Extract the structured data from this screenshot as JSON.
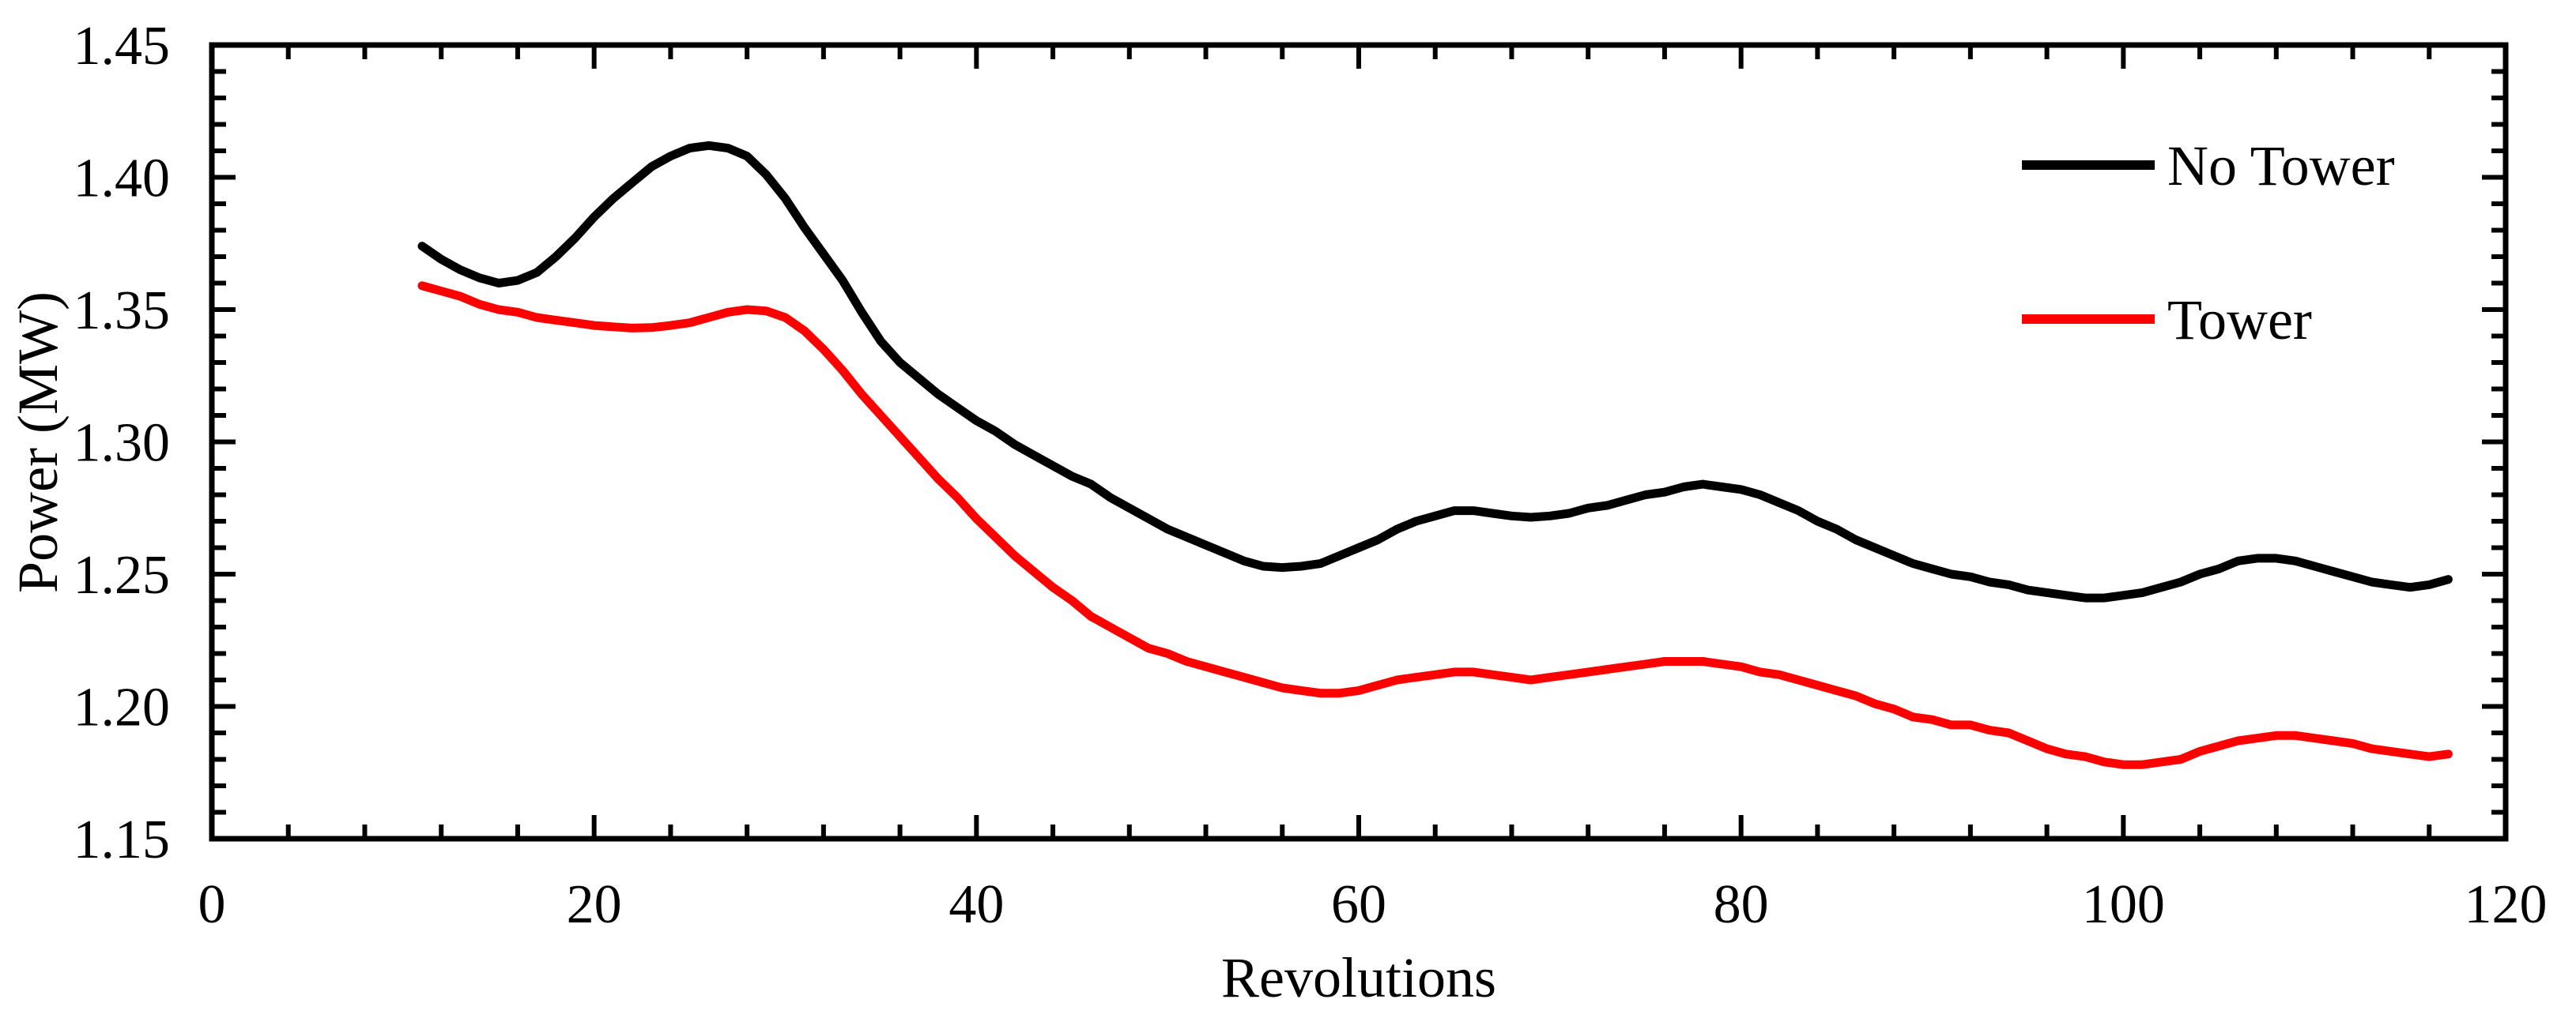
{
  "colors": {
    "background": "#ffffff",
    "axis": "#000000",
    "series_no_tower": "#000000",
    "series_tower": "#ff0000"
  },
  "chart_data": {
    "type": "line",
    "title": "",
    "xlabel": "Revolutions",
    "ylabel": "Power (MW)",
    "xlim": [
      0,
      120
    ],
    "ylim": [
      1.15,
      1.45
    ],
    "grid": false,
    "legend_position": "top-right",
    "x_major_tick_step": 20,
    "x_minor_tick_step": 4,
    "y_major_tick_step": 0.05,
    "y_minor_tick_step": 0.01,
    "x_tick_labels": [
      "0",
      "20",
      "40",
      "60",
      "80",
      "100",
      "120"
    ],
    "x_tick_values": [
      0,
      20,
      40,
      60,
      80,
      100,
      120
    ],
    "y_tick_labels": [
      "1.15",
      "1.20",
      "1.25",
      "1.30",
      "1.35",
      "1.40",
      "1.45"
    ],
    "y_tick_values": [
      1.15,
      1.2,
      1.25,
      1.3,
      1.35,
      1.4,
      1.45
    ],
    "series": [
      {
        "name": "No Tower",
        "color": "#000000",
        "points": [
          [
            11,
            1.374
          ],
          [
            12,
            1.369
          ],
          [
            13,
            1.365
          ],
          [
            14,
            1.362
          ],
          [
            15,
            1.36
          ],
          [
            16,
            1.361
          ],
          [
            17,
            1.364
          ],
          [
            18,
            1.37
          ],
          [
            19,
            1.377
          ],
          [
            20,
            1.385
          ],
          [
            21,
            1.392
          ],
          [
            22,
            1.398
          ],
          [
            23,
            1.404
          ],
          [
            24,
            1.408
          ],
          [
            25,
            1.411
          ],
          [
            26,
            1.412
          ],
          [
            27,
            1.411
          ],
          [
            28,
            1.408
          ],
          [
            29,
            1.401
          ],
          [
            30,
            1.392
          ],
          [
            31,
            1.381
          ],
          [
            32,
            1.371
          ],
          [
            33,
            1.361
          ],
          [
            34,
            1.349
          ],
          [
            35,
            1.338
          ],
          [
            36,
            1.33
          ],
          [
            37,
            1.324
          ],
          [
            38,
            1.318
          ],
          [
            39,
            1.313
          ],
          [
            40,
            1.308
          ],
          [
            41,
            1.304
          ],
          [
            42,
            1.299
          ],
          [
            43,
            1.295
          ],
          [
            44,
            1.291
          ],
          [
            45,
            1.287
          ],
          [
            46,
            1.284
          ],
          [
            47,
            1.279
          ],
          [
            48,
            1.275
          ],
          [
            49,
            1.271
          ],
          [
            50,
            1.267
          ],
          [
            51,
            1.264
          ],
          [
            52,
            1.261
          ],
          [
            53,
            1.258
          ],
          [
            54,
            1.255
          ],
          [
            55,
            1.253
          ],
          [
            56,
            1.2525
          ],
          [
            57,
            1.253
          ],
          [
            58,
            1.254
          ],
          [
            59,
            1.257
          ],
          [
            60,
            1.26
          ],
          [
            61,
            1.263
          ],
          [
            62,
            1.267
          ],
          [
            63,
            1.27
          ],
          [
            64,
            1.272
          ],
          [
            65,
            1.274
          ],
          [
            66,
            1.274
          ],
          [
            67,
            1.273
          ],
          [
            68,
            1.272
          ],
          [
            69,
            1.2715
          ],
          [
            70,
            1.272
          ],
          [
            71,
            1.273
          ],
          [
            72,
            1.275
          ],
          [
            73,
            1.276
          ],
          [
            74,
            1.278
          ],
          [
            75,
            1.28
          ],
          [
            76,
            1.281
          ],
          [
            77,
            1.283
          ],
          [
            78,
            1.284
          ],
          [
            79,
            1.283
          ],
          [
            80,
            1.282
          ],
          [
            81,
            1.28
          ],
          [
            82,
            1.277
          ],
          [
            83,
            1.274
          ],
          [
            84,
            1.27
          ],
          [
            85,
            1.267
          ],
          [
            86,
            1.263
          ],
          [
            87,
            1.26
          ],
          [
            88,
            1.257
          ],
          [
            89,
            1.254
          ],
          [
            90,
            1.252
          ],
          [
            91,
            1.25
          ],
          [
            92,
            1.249
          ],
          [
            93,
            1.247
          ],
          [
            94,
            1.246
          ],
          [
            95,
            1.244
          ],
          [
            96,
            1.243
          ],
          [
            97,
            1.242
          ],
          [
            98,
            1.241
          ],
          [
            99,
            1.241
          ],
          [
            100,
            1.242
          ],
          [
            101,
            1.243
          ],
          [
            102,
            1.245
          ],
          [
            103,
            1.247
          ],
          [
            104,
            1.25
          ],
          [
            105,
            1.252
          ],
          [
            106,
            1.255
          ],
          [
            107,
            1.256
          ],
          [
            108,
            1.256
          ],
          [
            109,
            1.255
          ],
          [
            110,
            1.253
          ],
          [
            111,
            1.251
          ],
          [
            112,
            1.249
          ],
          [
            113,
            1.247
          ],
          [
            114,
            1.246
          ],
          [
            115,
            1.245
          ],
          [
            116,
            1.246
          ],
          [
            117,
            1.248
          ]
        ]
      },
      {
        "name": "Tower",
        "color": "#ff0000",
        "points": [
          [
            11,
            1.359
          ],
          [
            12,
            1.357
          ],
          [
            13,
            1.355
          ],
          [
            14,
            1.352
          ],
          [
            15,
            1.35
          ],
          [
            16,
            1.349
          ],
          [
            17,
            1.347
          ],
          [
            18,
            1.346
          ],
          [
            19,
            1.345
          ],
          [
            20,
            1.344
          ],
          [
            21,
            1.3435
          ],
          [
            22,
            1.343
          ],
          [
            23,
            1.3432
          ],
          [
            24,
            1.344
          ],
          [
            25,
            1.345
          ],
          [
            26,
            1.347
          ],
          [
            27,
            1.349
          ],
          [
            28,
            1.35
          ],
          [
            29,
            1.3495
          ],
          [
            30,
            1.347
          ],
          [
            31,
            1.342
          ],
          [
            32,
            1.335
          ],
          [
            33,
            1.327
          ],
          [
            34,
            1.318
          ],
          [
            35,
            1.31
          ],
          [
            36,
            1.302
          ],
          [
            37,
            1.294
          ],
          [
            38,
            1.286
          ],
          [
            39,
            1.279
          ],
          [
            40,
            1.271
          ],
          [
            41,
            1.264
          ],
          [
            42,
            1.257
          ],
          [
            43,
            1.251
          ],
          [
            44,
            1.245
          ],
          [
            45,
            1.24
          ],
          [
            46,
            1.234
          ],
          [
            47,
            1.23
          ],
          [
            48,
            1.226
          ],
          [
            49,
            1.222
          ],
          [
            50,
            1.22
          ],
          [
            51,
            1.217
          ],
          [
            52,
            1.215
          ],
          [
            53,
            1.213
          ],
          [
            54,
            1.211
          ],
          [
            55,
            1.209
          ],
          [
            56,
            1.207
          ],
          [
            57,
            1.206
          ],
          [
            58,
            1.205
          ],
          [
            59,
            1.205
          ],
          [
            60,
            1.206
          ],
          [
            61,
            1.208
          ],
          [
            62,
            1.21
          ],
          [
            63,
            1.211
          ],
          [
            64,
            1.212
          ],
          [
            65,
            1.213
          ],
          [
            66,
            1.213
          ],
          [
            67,
            1.212
          ],
          [
            68,
            1.211
          ],
          [
            69,
            1.21
          ],
          [
            70,
            1.211
          ],
          [
            71,
            1.212
          ],
          [
            72,
            1.213
          ],
          [
            73,
            1.214
          ],
          [
            74,
            1.215
          ],
          [
            75,
            1.216
          ],
          [
            76,
            1.217
          ],
          [
            77,
            1.217
          ],
          [
            78,
            1.217
          ],
          [
            79,
            1.216
          ],
          [
            80,
            1.215
          ],
          [
            81,
            1.213
          ],
          [
            82,
            1.212
          ],
          [
            83,
            1.21
          ],
          [
            84,
            1.208
          ],
          [
            85,
            1.206
          ],
          [
            86,
            1.204
          ],
          [
            87,
            1.201
          ],
          [
            88,
            1.199
          ],
          [
            89,
            1.196
          ],
          [
            90,
            1.195
          ],
          [
            91,
            1.193
          ],
          [
            92,
            1.193
          ],
          [
            93,
            1.191
          ],
          [
            94,
            1.19
          ],
          [
            95,
            1.187
          ],
          [
            96,
            1.184
          ],
          [
            97,
            1.182
          ],
          [
            98,
            1.181
          ],
          [
            99,
            1.179
          ],
          [
            100,
            1.178
          ],
          [
            101,
            1.178
          ],
          [
            102,
            1.179
          ],
          [
            103,
            1.18
          ],
          [
            104,
            1.183
          ],
          [
            105,
            1.185
          ],
          [
            106,
            1.187
          ],
          [
            107,
            1.188
          ],
          [
            108,
            1.189
          ],
          [
            109,
            1.189
          ],
          [
            110,
            1.188
          ],
          [
            111,
            1.187
          ],
          [
            112,
            1.186
          ],
          [
            113,
            1.184
          ],
          [
            114,
            1.183
          ],
          [
            115,
            1.182
          ],
          [
            116,
            1.181
          ],
          [
            117,
            1.182
          ]
        ]
      }
    ]
  }
}
